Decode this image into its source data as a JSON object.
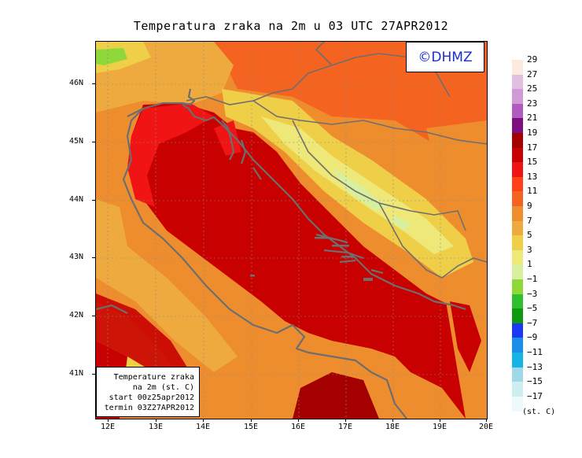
{
  "title": "Temperatura zraka na 2m u 03 UTC 27APR2012",
  "logo_text": "©DHMZ",
  "info_box": {
    "line1": "Temperature zraka",
    "line2": "na 2m (st. C)",
    "line3": "start 00z25apr2012",
    "line4": "termin 03Z27APR2012"
  },
  "lat_labels": [
    "46N",
    "45N",
    "44N",
    "43N",
    "42N",
    "41N"
  ],
  "lon_labels": [
    "12E",
    "13E",
    "14E",
    "15E",
    "16E",
    "17E",
    "18E",
    "19E",
    "20E"
  ],
  "colorbar": {
    "labels": [
      "29",
      "27",
      "25",
      "23",
      "21",
      "19",
      "17",
      "15",
      "13",
      "11",
      "9",
      "7",
      "5",
      "3",
      "1",
      "−1",
      "−3",
      "−5",
      "−7",
      "−9",
      "−11",
      "−13",
      "−15",
      "−17"
    ],
    "colors": [
      "#fbeadd",
      "#e2bfe0",
      "#cf9ad6",
      "#b05bc0",
      "#7e0e80",
      "#a50000",
      "#c80000",
      "#f01414",
      "#ff4018",
      "#f4631f",
      "#ee8d2e",
      "#eeaa3e",
      "#efce48",
      "#eee878",
      "#d8ef9e",
      "#8ed83a",
      "#2fbf2f",
      "#0e9a0e",
      "#1c38f2",
      "#1a8eeb",
      "#16b4e6",
      "#9fd8e6",
      "#cfeef2",
      "#eef9fb"
    ],
    "unit": "(st. C)"
  },
  "map_colors": {
    "sea": "#c80000",
    "coastal_sea": "#f01414",
    "inland_warm": "#ee8d2e",
    "inland_hot": "#f4631f",
    "inland_mild": "#eeaa3e",
    "highland": "#efce48",
    "mountain": "#eee878",
    "cold_peak": "#d8ef9e",
    "green": "#8ed83a",
    "dark_sea": "#a50000",
    "outline": "#6e6e6e"
  }
}
